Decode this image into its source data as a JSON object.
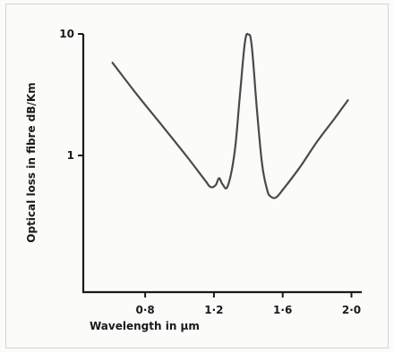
{
  "chart_data": {
    "type": "line",
    "title": "",
    "xlabel": "Wavelength in µm",
    "ylabel": "Optical loss in fibre dB/Km",
    "x_ticks": [
      {
        "value": 0.8,
        "label": "0·8"
      },
      {
        "value": 1.2,
        "label": "1·2"
      },
      {
        "value": 1.6,
        "label": "1·6"
      },
      {
        "value": 2.0,
        "label": "2·0"
      }
    ],
    "y_ticks": [
      {
        "value": 1,
        "label": "1"
      },
      {
        "value": 10,
        "label": "10"
      }
    ],
    "y_scale": "log",
    "xlim": [
      0.44,
      2.06
    ],
    "ylim": [
      0.075,
      10
    ],
    "grid": false,
    "series": [
      {
        "color": "#4a4a4a",
        "x": [
          0.61,
          0.75,
          0.9,
          1.05,
          1.15,
          1.18,
          1.21,
          1.23,
          1.25,
          1.28,
          1.32,
          1.35,
          1.38,
          1.4,
          1.42,
          1.45,
          1.48,
          1.51,
          1.53,
          1.56,
          1.6,
          1.7,
          1.8,
          1.9,
          1.98
        ],
        "y": [
          5.8,
          3.2,
          1.75,
          0.95,
          0.62,
          0.55,
          0.57,
          0.65,
          0.58,
          0.56,
          1.05,
          3.0,
          8.5,
          9.9,
          8.0,
          2.4,
          0.85,
          0.52,
          0.46,
          0.45,
          0.52,
          0.8,
          1.3,
          2.0,
          2.85
        ]
      }
    ]
  }
}
